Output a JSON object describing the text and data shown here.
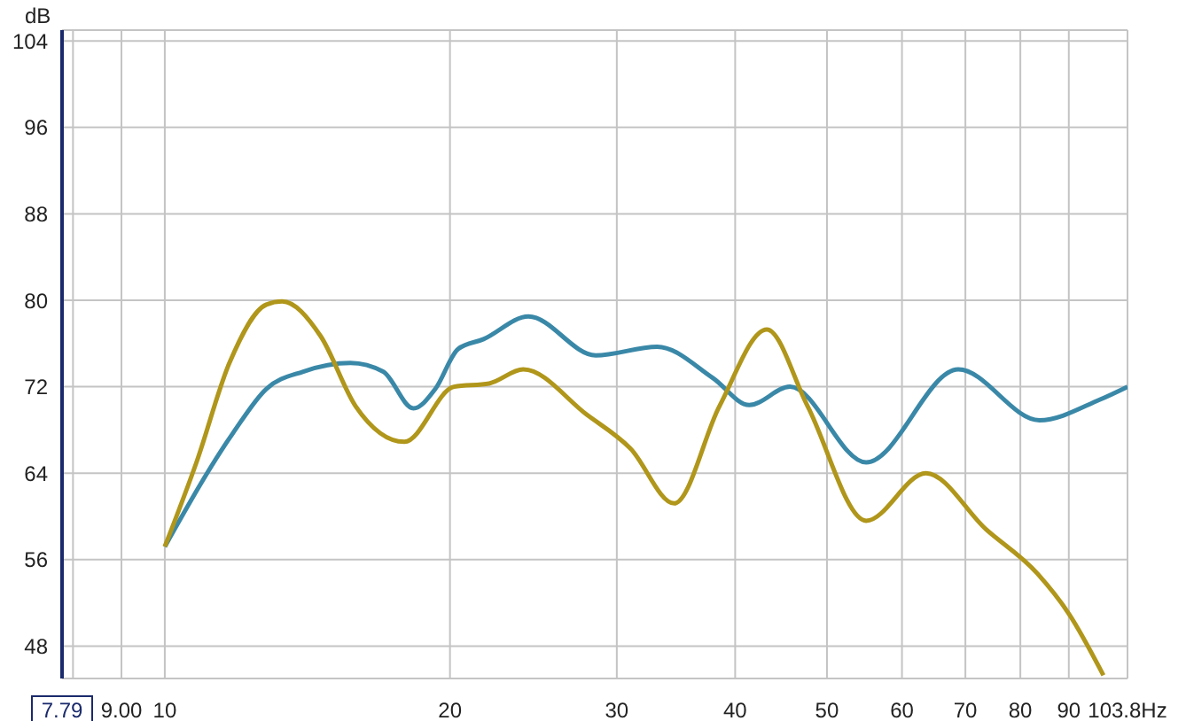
{
  "chart_data": {
    "type": "line",
    "ylabel": "dB",
    "log": "x",
    "grid": true,
    "line_style": "solid",
    "marker": "none",
    "xlim": [
      7.79,
      103.8
    ],
    "ylim": [
      45,
      105
    ],
    "xticks": [
      {
        "value": 7.79,
        "label": "7.79"
      },
      {
        "value": 8,
        "label": null
      },
      {
        "value": 9,
        "label": "9.00"
      },
      10,
      20,
      30,
      40,
      50,
      60,
      70,
      80,
      90,
      {
        "value": 103.8,
        "label": "103.8Hz"
      }
    ],
    "yticks": [
      48,
      56,
      64,
      72,
      80,
      88,
      96,
      104
    ],
    "series": [
      {
        "color": "#3a88a8",
        "x": [
          10,
          11.8,
          12.8,
          14.0,
          15.7,
          17.0,
          18.3,
          19.3,
          20.4,
          21.7,
          24.2,
          28.5,
          33.1,
          37.9,
          41.4,
          45.7,
          55.0,
          68.8,
          83.8,
          97.0,
          103.8
        ],
        "values": [
          57.2,
          67.7,
          71.8,
          73.4,
          74.2,
          73.4,
          70.0,
          71.8,
          75.5,
          76.4,
          78.5,
          74.9,
          75.7,
          72.8,
          70.3,
          72.0,
          65.0,
          73.6,
          68.9,
          70.8,
          72.0
        ]
      },
      {
        "color": "#b0961a",
        "x": [
          10,
          10.8,
          11.7,
          12.8,
          13.3,
          14.6,
          15.9,
          17.9,
          20.2,
          22.0,
          23.9,
          27.9,
          31.0,
          34.5,
          38.5,
          43.2,
          47.7,
          55.0,
          63.6,
          73.6,
          83.4,
          90.0,
          97.9
        ],
        "values": [
          57.2,
          65.0,
          74.2,
          79.6,
          79.9,
          76.7,
          70.2,
          66.9,
          72.0,
          72.3,
          73.6,
          69.4,
          66.3,
          61.2,
          70.2,
          77.3,
          70.2,
          59.6,
          64.0,
          58.8,
          54.7,
          51.0,
          45.3
        ]
      }
    ]
  }
}
